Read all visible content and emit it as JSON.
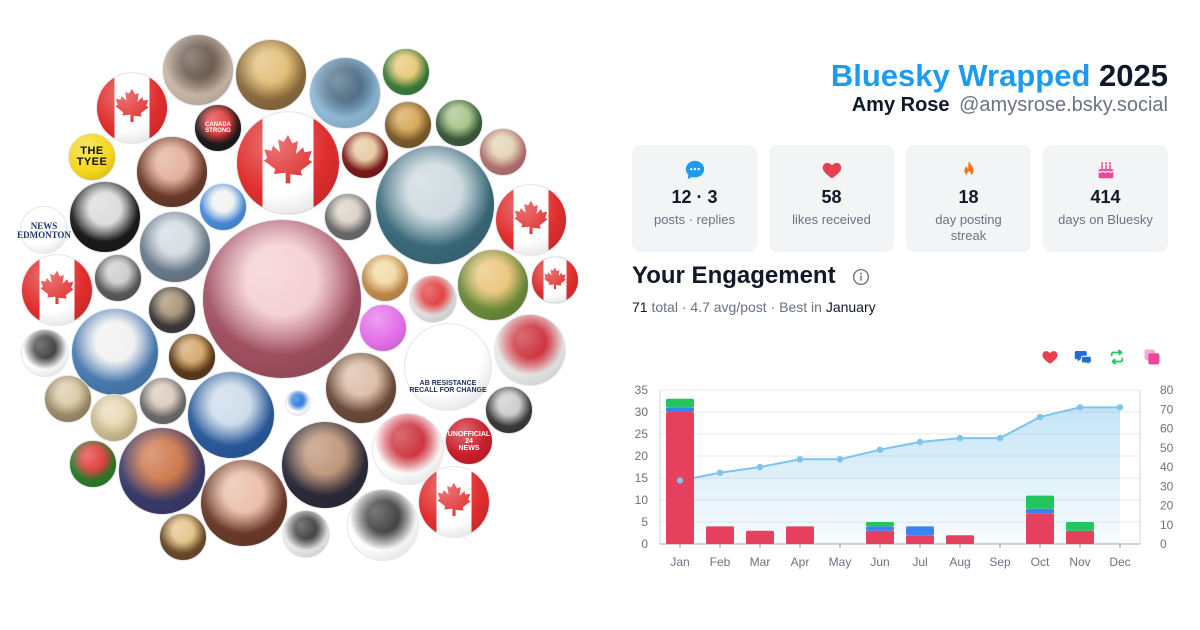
{
  "header": {
    "brand": "Bluesky Wrapped",
    "year": "2025",
    "user_name": "Amy Rose",
    "user_handle": "@amysrose.bsky.social"
  },
  "stats": [
    {
      "icon": "chat-bubble-icon",
      "value": "12 · 3",
      "label": "posts · replies",
      "color": "#1d9bf0"
    },
    {
      "icon": "heart-icon",
      "value": "58",
      "label": "likes received",
      "color": "#e5404e"
    },
    {
      "icon": "flame-icon",
      "value": "18",
      "label": "day posting streak",
      "color": "#f97316"
    },
    {
      "icon": "cake-icon",
      "value": "414",
      "label": "days on Bluesky",
      "color": "#ec4899"
    }
  ],
  "engagement": {
    "title": "Your Engagement",
    "total_value": "71",
    "total_word": "total",
    "sep1": " · ",
    "avg": "4.7 avg/post",
    "sep2": " · ",
    "best_prefix": "Best in ",
    "best_month": "January"
  },
  "legend_icons": [
    {
      "name": "heart-icon",
      "color": "#e5404e"
    },
    {
      "name": "reply-icon",
      "color": "#1d6fd6"
    },
    {
      "name": "repost-icon",
      "color": "#22c55e"
    },
    {
      "name": "quote-icon",
      "color": "#ec4899"
    }
  ],
  "avatar_texts": {
    "tyee": [
      "THE",
      "TYEE"
    ],
    "ctv": [
      "NEWS",
      "EDMONTON"
    ],
    "strong": [
      "CANADA",
      "STRONG"
    ],
    "resistance": [
      "AB RESISTANCE",
      "RECALL FOR CHANGE"
    ],
    "news24": [
      "UNOFFICIAL",
      "24",
      "NEWS"
    ]
  },
  "chart_data": {
    "type": "bar",
    "categories": [
      "Jan",
      "Feb",
      "Mar",
      "Apr",
      "May",
      "Jun",
      "Jul",
      "Aug",
      "Sep",
      "Oct",
      "Nov",
      "Dec"
    ],
    "series": [
      {
        "values": [
          30,
          4,
          3,
          4,
          0,
          3,
          2,
          2,
          0,
          7,
          3,
          0
        ],
        "color": "#e5405e"
      },
      {
        "values": [
          1,
          0,
          0,
          0,
          0,
          1,
          2,
          0,
          0,
          1,
          0,
          0
        ],
        "color": "#3b82f6"
      },
      {
        "values": [
          2,
          0,
          0,
          0,
          0,
          1,
          0,
          0,
          0,
          3,
          2,
          0
        ],
        "color": "#22c55e"
      },
      {
        "values": [
          33,
          37,
          40,
          44,
          44,
          49,
          53,
          55,
          55,
          66,
          71,
          71
        ],
        "type": "line",
        "axis": "right",
        "color": "#7cc4ec"
      }
    ],
    "yticks_left": [
      0,
      5,
      10,
      15,
      20,
      25,
      30,
      35
    ],
    "yticks_right": [
      0,
      10,
      20,
      30,
      40,
      50,
      60,
      70,
      80
    ],
    "ylim_left": [
      0,
      35
    ],
    "ylim_right": [
      0,
      80
    ],
    "grid": true
  }
}
